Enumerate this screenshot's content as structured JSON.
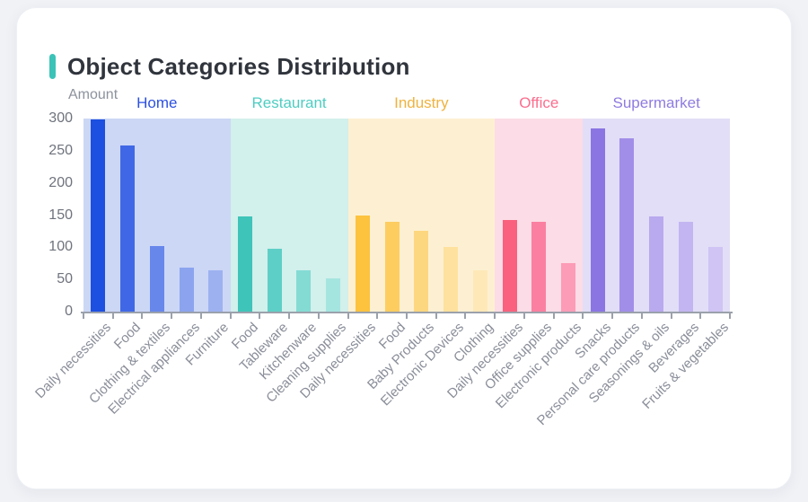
{
  "card": {
    "title": "Object Categories Distribution",
    "accent_color": "#3bc3b8"
  },
  "chart_data": {
    "type": "bar",
    "title": "Object Categories Distribution",
    "xlabel": "",
    "ylabel": "Amount",
    "ylim": [
      0,
      300
    ],
    "yticks": [
      0,
      50,
      100,
      150,
      200,
      250,
      300
    ],
    "grid": false,
    "legend_position": "none",
    "x_tick_label_rotation": 45,
    "groups": [
      {
        "name": "Home",
        "label_color": "#2b50e0",
        "band_color": "#ccd7f6",
        "categories": [
          "Daily necessities",
          "Food",
          "Clothing & textiles",
          "Electrical appliances",
          "Furniture"
        ],
        "values": [
          298,
          258,
          102,
          69,
          64
        ],
        "bar_colors": [
          "#1d4fe0",
          "#4068e6",
          "#6887eb",
          "#8ca4ef",
          "#9db1f1"
        ]
      },
      {
        "name": "Restaurant",
        "label_color": "#4ecdc2",
        "band_color": "#d2f0ec",
        "categories": [
          "Food",
          "Tableware",
          "Kitchenware",
          "Cleaning supplies"
        ],
        "values": [
          148,
          97,
          64,
          51
        ],
        "bar_colors": [
          "#3ec4b8",
          "#5ecfc6",
          "#84dbd4",
          "#a5e5e0"
        ]
      },
      {
        "name": "Industry",
        "label_color": "#efb33f",
        "band_color": "#fdf0d2",
        "categories": [
          "Daily necessities",
          "Food",
          "Baby Products",
          "Electronic Devices",
          "Clothing"
        ],
        "values": [
          150,
          139,
          126,
          100,
          64
        ],
        "bar_colors": [
          "#fdc23e",
          "#fdcd60",
          "#fdd77f",
          "#fee19e",
          "#fee8b8"
        ]
      },
      {
        "name": "Office",
        "label_color": "#fb6e8e",
        "band_color": "#fcdce6",
        "categories": [
          "Daily necessities",
          "Office supplies",
          "Electronic products"
        ],
        "values": [
          142,
          139,
          76
        ],
        "bar_colors": [
          "#f9617e",
          "#fa7fa0",
          "#fd9cb7"
        ]
      },
      {
        "name": "Supermarket",
        "label_color": "#8f7be0",
        "band_color": "#e2def7",
        "categories": [
          "Snacks",
          "Personal care products",
          "Seasonings & oils",
          "Beverages",
          "Fruits & vegetables"
        ],
        "values": [
          284,
          270,
          148,
          140,
          101
        ],
        "bar_colors": [
          "#8b75e3",
          "#a18ee8",
          "#b9a9ee",
          "#c3b5f1",
          "#cfc4f4"
        ]
      }
    ]
  }
}
